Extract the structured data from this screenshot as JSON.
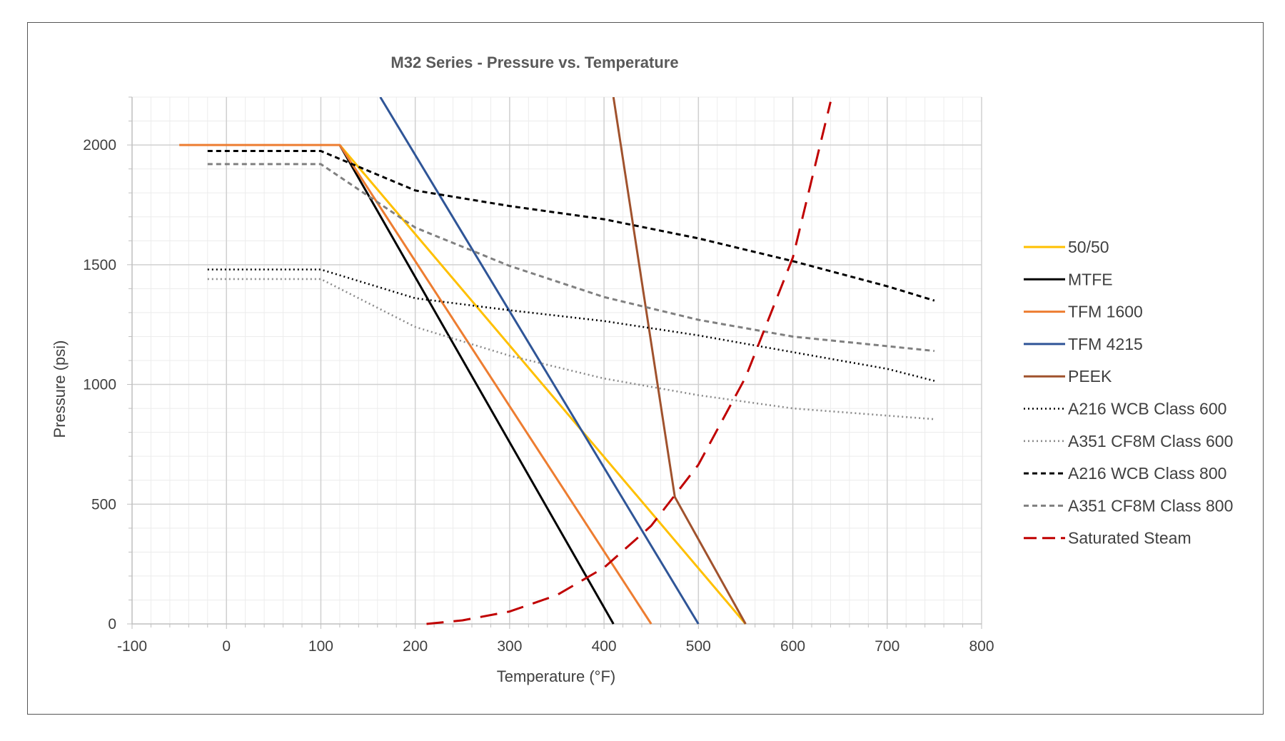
{
  "chart_data": {
    "type": "line",
    "title": "M32 Series - Pressure vs. Temperature",
    "xlabel": "Temperature (°F)",
    "ylabel": "Pressure (psi)",
    "xlim": [
      -100,
      800
    ],
    "ylim": [
      0,
      2200
    ],
    "xticks": [
      -100,
      0,
      100,
      200,
      300,
      400,
      500,
      600,
      700,
      800
    ],
    "yticks": [
      0,
      500,
      1000,
      1500,
      2000
    ],
    "x_minor_step": 20,
    "y_minor_step": 100,
    "grid": true,
    "legend_position": "right",
    "series": [
      {
        "name": "50/50",
        "color": "#FFC000",
        "dash": "solid",
        "points": [
          [
            120,
            2000
          ],
          [
            550,
            0
          ]
        ]
      },
      {
        "name": "MTFE",
        "color": "#000000",
        "dash": "solid",
        "points": [
          [
            120,
            2000
          ],
          [
            410,
            0
          ]
        ]
      },
      {
        "name": "TFM 1600",
        "color": "#ED7D31",
        "dash": "solid",
        "points": [
          [
            -50,
            2000
          ],
          [
            120,
            2000
          ],
          [
            450,
            0
          ]
        ]
      },
      {
        "name": "TFM 4215",
        "color": "#2F5597",
        "dash": "solid",
        "points": [
          [
            163,
            2200
          ],
          [
            500,
            0
          ]
        ]
      },
      {
        "name": "PEEK",
        "color": "#A0522D",
        "dash": "solid",
        "points": [
          [
            410,
            2200
          ],
          [
            475,
            530
          ],
          [
            550,
            0
          ]
        ]
      },
      {
        "name": "A216 WCB Class 600",
        "color": "#000000",
        "dash": "dotted",
        "points": [
          [
            -20,
            1480
          ],
          [
            100,
            1480
          ],
          [
            200,
            1360
          ],
          [
            300,
            1310
          ],
          [
            400,
            1265
          ],
          [
            500,
            1205
          ],
          [
            600,
            1135
          ],
          [
            700,
            1065
          ],
          [
            750,
            1015
          ]
        ]
      },
      {
        "name": "A351 CF8M Class 600",
        "color": "#8C8C8C",
        "dash": "dotted",
        "points": [
          [
            -20,
            1440
          ],
          [
            100,
            1440
          ],
          [
            200,
            1240
          ],
          [
            300,
            1120
          ],
          [
            400,
            1025
          ],
          [
            500,
            955
          ],
          [
            600,
            900
          ],
          [
            700,
            870
          ],
          [
            750,
            855
          ]
        ]
      },
      {
        "name": "A216 WCB Class 800",
        "color": "#000000",
        "dash": "dashed",
        "points": [
          [
            -20,
            1975
          ],
          [
            100,
            1975
          ],
          [
            200,
            1810
          ],
          [
            300,
            1745
          ],
          [
            400,
            1690
          ],
          [
            500,
            1610
          ],
          [
            600,
            1515
          ],
          [
            700,
            1410
          ],
          [
            750,
            1350
          ]
        ]
      },
      {
        "name": "A351 CF8M Class 800",
        "color": "#808080",
        "dash": "dashed",
        "points": [
          [
            -20,
            1920
          ],
          [
            100,
            1920
          ],
          [
            200,
            1655
          ],
          [
            300,
            1495
          ],
          [
            400,
            1365
          ],
          [
            500,
            1270
          ],
          [
            600,
            1200
          ],
          [
            700,
            1160
          ],
          [
            750,
            1140
          ]
        ]
      },
      {
        "name": "Saturated Steam",
        "color": "#C00000",
        "dash": "longdash",
        "points": [
          [
            212,
            0
          ],
          [
            250,
            15
          ],
          [
            300,
            52
          ],
          [
            350,
            120
          ],
          [
            400,
            235
          ],
          [
            450,
            410
          ],
          [
            500,
            665
          ],
          [
            550,
            1030
          ],
          [
            600,
            1530
          ],
          [
            640,
            2180
          ]
        ]
      }
    ]
  }
}
